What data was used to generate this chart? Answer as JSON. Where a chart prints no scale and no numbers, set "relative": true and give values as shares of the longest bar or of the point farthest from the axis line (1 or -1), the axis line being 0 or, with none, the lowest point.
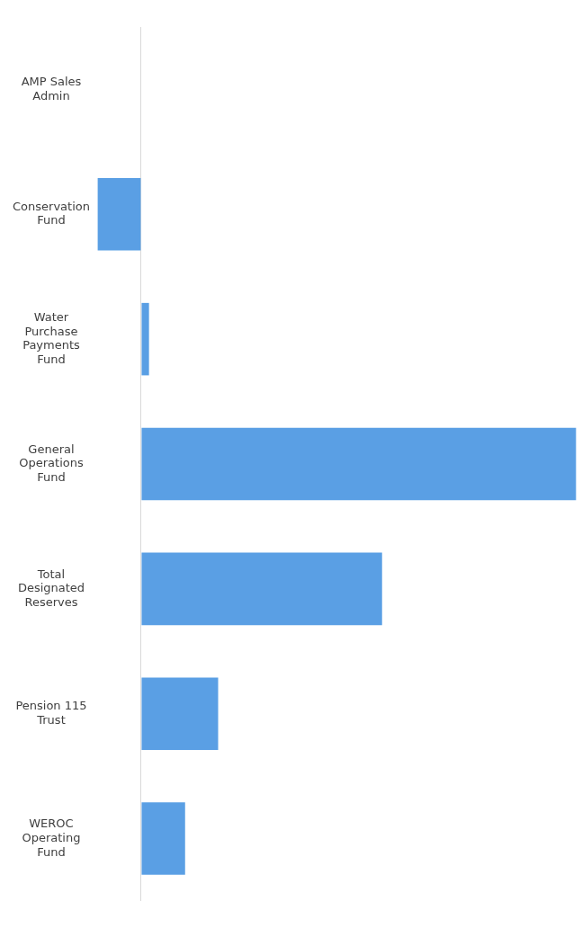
{
  "chart_data": {
    "type": "bar",
    "relative": true,
    "orientation": "horizontal",
    "categories": [
      "AMP Sales Admin",
      "Conservation Fund",
      "Water Purchase Payments Fund",
      "General Operations Fund",
      "Total Designated Reserves",
      "Pension 115 Trust",
      "WEROC Operating Fund"
    ],
    "values": [
      0,
      -0.1,
      0.018,
      1,
      0.554,
      0.177,
      0.101
    ],
    "color": "#5a9fe4",
    "grid": false,
    "legend": false
  }
}
